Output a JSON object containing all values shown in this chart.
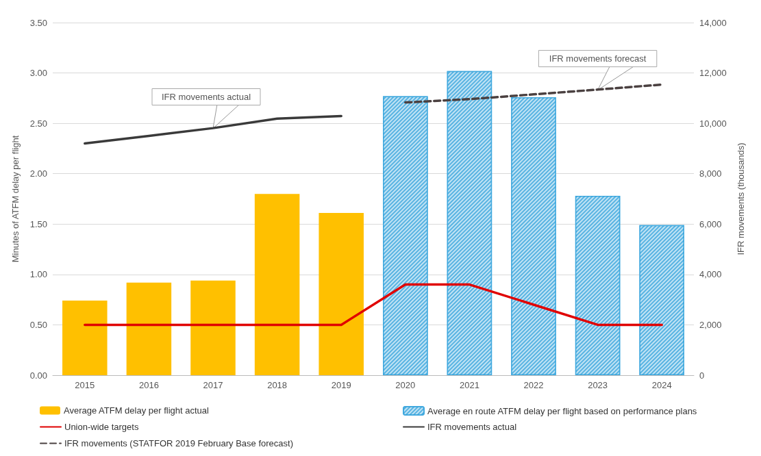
{
  "chart_data": {
    "type": "bar",
    "categories": [
      "2015",
      "2016",
      "2017",
      "2018",
      "2019",
      "2020",
      "2021",
      "2022",
      "2023",
      "2024"
    ],
    "ylabel": "Minutes of ATFM delay per flight",
    "y2label": "IFR movements (thousands)",
    "ylim": [
      0,
      3.5
    ],
    "yticks": [
      {
        "value": 0,
        "label": "0.00"
      },
      {
        "value": 0.5,
        "label": "0.50"
      },
      {
        "value": 1,
        "label": "1.00"
      },
      {
        "value": 1.5,
        "label": "1.50"
      },
      {
        "value": 2,
        "label": "2.00"
      },
      {
        "value": 2.5,
        "label": "2.50"
      },
      {
        "value": 3,
        "label": "3.00"
      },
      {
        "value": 3.5,
        "label": "3.50"
      }
    ],
    "y2lim": [
      0,
      14000
    ],
    "y2ticks": [
      0,
      {
        "value": 2000,
        "label": "2,000"
      },
      {
        "value": 4000,
        "label": "4,000"
      },
      {
        "value": 6000,
        "label": "6,000"
      },
      {
        "value": 8000,
        "label": "8,000"
      },
      {
        "value": 10000,
        "label": "10,000"
      },
      {
        "value": 12000,
        "label": "12,000"
      },
      {
        "value": 14000,
        "label": "14,000"
      }
    ],
    "series": [
      {
        "name": "Average ATFM delay per flight actual",
        "color": "#ffc000",
        "values": [
          0.74,
          0.92,
          0.94,
          1.8,
          1.61,
          null,
          null,
          null,
          null,
          null
        ]
      },
      {
        "name": "Average en route ATFM delay per flight based on performance plans",
        "color": "#3aa6dd",
        "values": [
          null,
          null,
          null,
          null,
          null,
          2.77,
          3.02,
          2.76,
          1.78,
          1.49
        ]
      },
      {
        "name": "Union-wide targets",
        "type": "line",
        "color": "#e00000",
        "values": [
          0.5,
          0.5,
          0.5,
          0.5,
          0.5,
          0.9,
          0.9,
          0.7,
          0.5,
          0.5
        ]
      },
      {
        "name": "IFR movements actual",
        "type": "line",
        "axis": "y2",
        "color": "#3a3a3a",
        "values": [
          9200,
          9500,
          9810,
          10190,
          10290,
          null,
          null,
          null,
          null,
          null
        ]
      },
      {
        "name": "IFR movements (STATFOR 2019 February Base forecast)",
        "type": "line",
        "axis": "y2",
        "color": "#4a4040",
        "line_style": "dashed",
        "values": [
          null,
          null,
          null,
          null,
          null,
          10830,
          10960,
          11150,
          11340,
          11540
        ]
      }
    ],
    "annotations": [
      {
        "text": "IFR movements actual",
        "x": "2017",
        "y": 2.45
      },
      {
        "text": "IFR movements forecast",
        "x": "2023",
        "y": 2.83
      }
    ],
    "grid": "y",
    "legend": "bottom",
    "marker": "none"
  }
}
